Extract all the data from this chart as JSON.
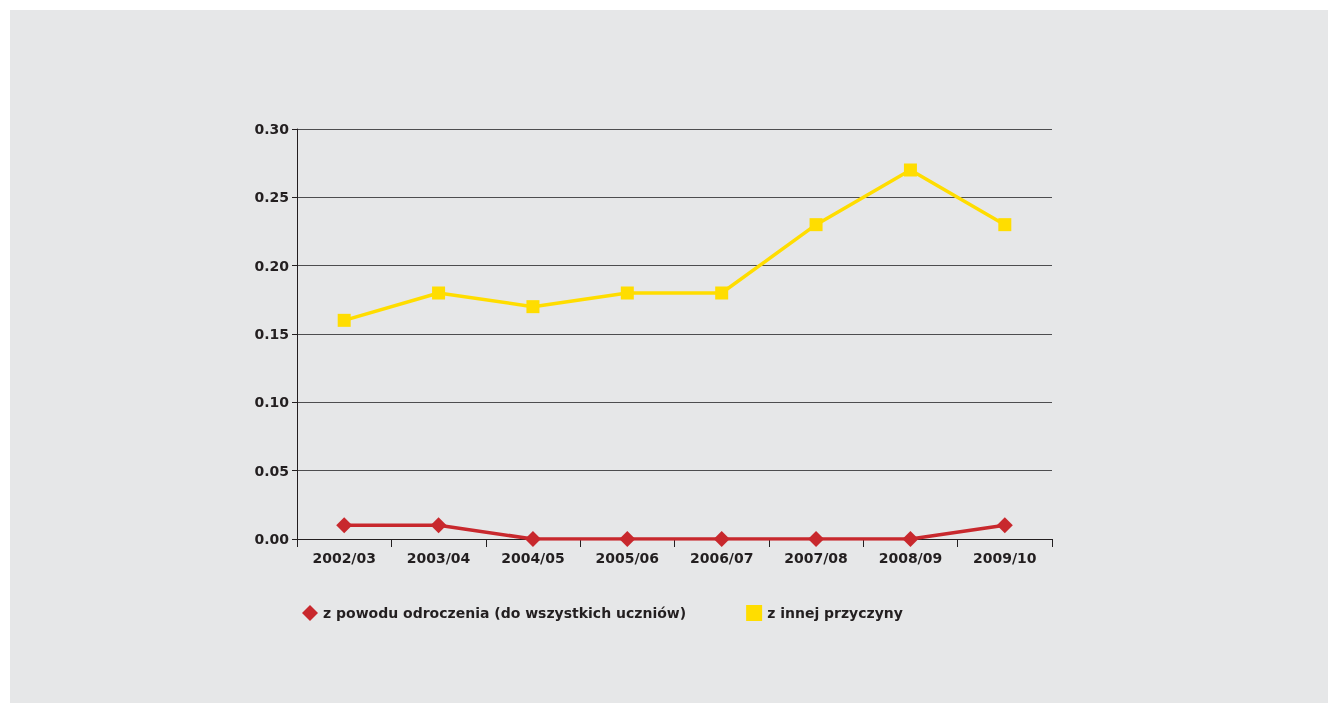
{
  "chart_data": {
    "type": "line",
    "categories": [
      "2002/03",
      "2003/04",
      "2004/05",
      "2005/06",
      "2006/07",
      "2007/08",
      "2008/09",
      "2009/10"
    ],
    "series": [
      {
        "name": "z powodu odroczenia (do wszystkich uczniów)",
        "color": "#c8282d",
        "marker": "diamond",
        "values": [
          0.01,
          0.01,
          0,
          0,
          0,
          0,
          0,
          0.01
        ]
      },
      {
        "name": "z innej przyczyny",
        "color": "#ffdd00",
        "marker": "square",
        "values": [
          0.16,
          0.18,
          0.17,
          0.18,
          0.18,
          0.23,
          0.27,
          0.23
        ]
      }
    ],
    "ylim": [
      0,
      0.3
    ],
    "yticks": [
      {
        "value": 0,
        "label": "0.00"
      },
      0.05,
      {
        "value": 0.1,
        "label": "0.10"
      },
      0.15,
      {
        "value": 0.2,
        "label": "0.20"
      },
      0.25,
      {
        "value": 0.3,
        "label": "0.30"
      }
    ],
    "grid": "y",
    "legend": "bottom",
    "line_style": "solid"
  }
}
